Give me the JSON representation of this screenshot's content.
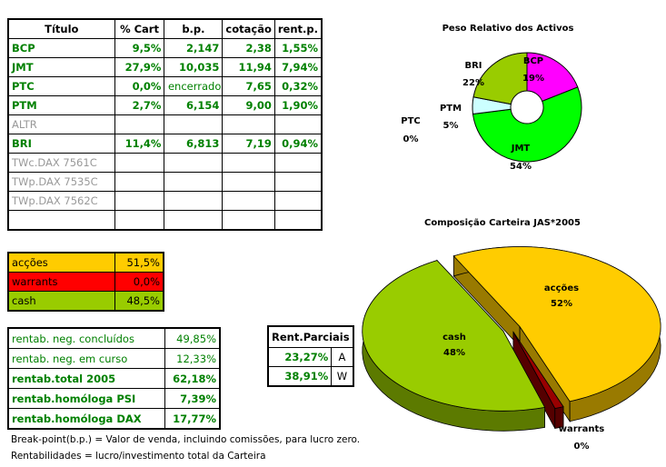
{
  "main_table": {
    "headers": [
      "Título",
      "% Cart",
      "b.p.",
      "cotação",
      "rent.p."
    ],
    "rows": [
      {
        "titulo": "BCP",
        "cart": "9,5%",
        "bp": "2,147",
        "cotacao": "2,38",
        "rent": "1,55%",
        "active": true
      },
      {
        "titulo": "JMT",
        "cart": "27,9%",
        "bp": "10,035",
        "cotacao": "11,94",
        "rent": "7,94%",
        "active": true
      },
      {
        "titulo": "PTC",
        "cart": "0,0%",
        "bp": "encerrado",
        "cotacao": "7,65",
        "rent": "0,32%",
        "active": true
      },
      {
        "titulo": "PTM",
        "cart": "2,7%",
        "bp": "6,154",
        "cotacao": "9,00",
        "rent": "1,90%",
        "active": true
      },
      {
        "titulo": "ALTR",
        "cart": "",
        "bp": "",
        "cotacao": "",
        "rent": "",
        "active": false
      },
      {
        "titulo": "BRI",
        "cart": "11,4%",
        "bp": "6,813",
        "cotacao": "7,19",
        "rent": "0,94%",
        "active": true
      },
      {
        "titulo": "TWc.DAX 7561C",
        "cart": "",
        "bp": "",
        "cotacao": "",
        "rent": "",
        "active": false
      },
      {
        "titulo": "TWp.DAX 7535C",
        "cart": "",
        "bp": "",
        "cotacao": "",
        "rent": "",
        "active": false
      },
      {
        "titulo": "TWp.DAX 7562C",
        "cart": "",
        "bp": "",
        "cotacao": "",
        "rent": "",
        "active": false
      },
      {
        "titulo": "",
        "cart": "",
        "bp": "",
        "cotacao": "",
        "rent": "",
        "active": false
      }
    ]
  },
  "allocation": [
    {
      "label": "acções",
      "value": "51,5%",
      "color": "#ffcc00"
    },
    {
      "label": "warrants",
      "value": "0,0%",
      "color": "#ff0000"
    },
    {
      "label": "cash",
      "value": "48,5%",
      "color": "#99cc00"
    }
  ],
  "rentab": [
    {
      "label": "rentab. neg. concluídos",
      "value": "49,85%",
      "bold": false
    },
    {
      "label": "rentab. neg. em curso",
      "value": "12,33%",
      "bold": false
    },
    {
      "label": "rentab.total 2005",
      "value": "62,18%",
      "bold": true
    },
    {
      "label": "rentab.homóloga PSI",
      "value": "7,39%",
      "bold": true
    },
    {
      "label": "rentab.homóloga DAX",
      "value": "17,77%",
      "bold": true
    }
  ],
  "rent_parciais": {
    "title": "Rent.Parciais",
    "rows": [
      {
        "value": "23,27%",
        "key": "A"
      },
      {
        "value": "38,91%",
        "key": "W"
      }
    ]
  },
  "notes": [
    "Break-point(b.p.) = Valor de venda, incluindo comissões, para lucro zero.",
    "Rentabilidades = lucro/investimento total da Carteira"
  ],
  "chart_data": [
    {
      "type": "pie",
      "variant": "doughnut",
      "title": "Peso Relativo dos Activos",
      "slices": [
        {
          "label": "BCP",
          "value": 19,
          "text": "19%",
          "color": "#ff00ff"
        },
        {
          "label": "JMT",
          "value": 54,
          "text": "54%",
          "color": "#00ff00"
        },
        {
          "label": "PTM",
          "value": 5,
          "text": "5%",
          "color": "#ccffff"
        },
        {
          "label": "PTC",
          "value": 0,
          "text": "0%",
          "color": "#3366ff"
        },
        {
          "label": "BRI",
          "value": 22,
          "text": "22%",
          "color": "#99cc00"
        }
      ]
    },
    {
      "type": "pie",
      "variant": "3d-exploded",
      "title": "Composição Carteira JAS*2005",
      "slices": [
        {
          "label": "acções",
          "value": 52,
          "text": "52%",
          "color": "#ffcc00"
        },
        {
          "label": "warrants",
          "value": 0,
          "text": "0%",
          "color": "#990000"
        },
        {
          "label": "cash",
          "value": 48,
          "text": "48%",
          "color": "#99cc00"
        }
      ]
    }
  ]
}
